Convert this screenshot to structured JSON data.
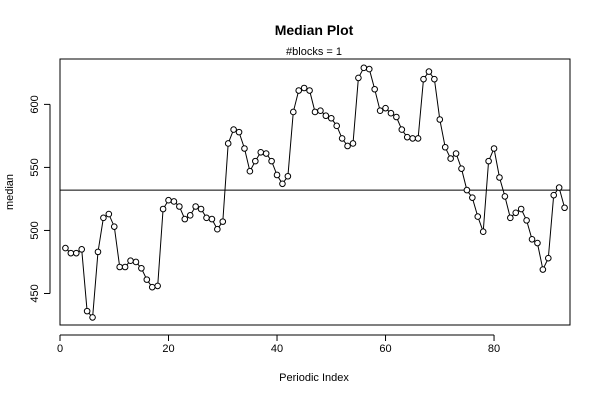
{
  "chart_data": {
    "type": "line",
    "title": "Median Plot",
    "subtitle": "#blocks =  1",
    "xlabel": "Periodic Index",
    "ylabel": "median",
    "xlim": [
      0,
      94
    ],
    "ylim": [
      425,
      636
    ],
    "xticks": [
      0,
      20,
      40,
      60,
      80
    ],
    "yticks": [
      450,
      500,
      550,
      600
    ],
    "reference_line": 532,
    "grid": false,
    "series": [
      {
        "marker": "open-circle",
        "x": [
          1,
          2,
          3,
          4,
          5,
          6,
          7,
          8,
          9,
          10,
          11,
          12,
          13,
          14,
          15,
          16,
          17,
          18,
          19,
          20,
          21,
          22,
          23,
          24,
          25,
          26,
          27,
          28,
          29,
          30,
          31,
          32,
          33,
          34,
          35,
          36,
          37,
          38,
          39,
          40,
          41,
          42,
          43,
          44,
          45,
          46,
          47,
          48,
          49,
          50,
          51,
          52,
          53,
          54,
          55,
          56,
          57,
          58,
          59,
          60,
          61,
          62,
          63,
          64,
          65,
          66,
          67,
          68,
          69,
          70,
          71,
          72,
          73,
          74,
          75,
          76,
          77,
          78,
          79,
          80,
          81,
          82,
          83,
          84,
          85,
          86,
          87,
          88,
          89,
          90,
          91,
          92,
          93
        ],
        "y": [
          486,
          482,
          482,
          485,
          436,
          431,
          483,
          510,
          513,
          503,
          471,
          471,
          476,
          475,
          470,
          461,
          455,
          456,
          517,
          524,
          523,
          519,
          509,
          512,
          519,
          517,
          510,
          509,
          501,
          507,
          569,
          580,
          578,
          565,
          547,
          555,
          562,
          561,
          555,
          544,
          537,
          543,
          594,
          611,
          613,
          611,
          594,
          595,
          591,
          589,
          583,
          573,
          567,
          569,
          621,
          629,
          628,
          612,
          595,
          597,
          593,
          590,
          580,
          574,
          573,
          573,
          620,
          626,
          620,
          588,
          566,
          557,
          561,
          549,
          532,
          526,
          511,
          499,
          555,
          565,
          542,
          527,
          510,
          514,
          517,
          508,
          493,
          490,
          469,
          478,
          528,
          534,
          518
        ]
      }
    ]
  }
}
